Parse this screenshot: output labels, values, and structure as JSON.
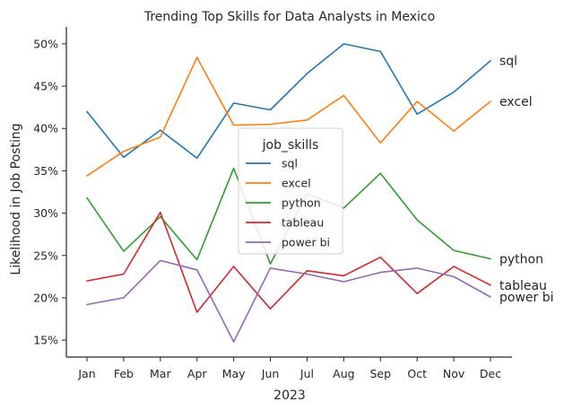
{
  "chart_data": {
    "type": "line",
    "title": "Trending Top Skills for Data Analysts in Mexico",
    "xlabel": "2023",
    "ylabel": "Likelihood in Job Posting",
    "categories": [
      "Jan",
      "Feb",
      "Mar",
      "Apr",
      "May",
      "Jun",
      "Jul",
      "Aug",
      "Sep",
      "Oct",
      "Nov",
      "Dec"
    ],
    "ylim": [
      13,
      52
    ],
    "yticks": [
      15,
      20,
      25,
      30,
      35,
      40,
      45,
      50
    ],
    "ytick_labels": [
      "15%",
      "20%",
      "25%",
      "30%",
      "35%",
      "40%",
      "45%",
      "50%"
    ],
    "legend": {
      "title": "job_skills",
      "placement": "center"
    },
    "grid": false,
    "series": [
      {
        "name": "sql",
        "color": "#1f77b4",
        "values": [
          42.0,
          36.6,
          39.8,
          36.5,
          43.0,
          42.2,
          46.5,
          50.0,
          49.1,
          41.7,
          44.3,
          48.0
        ]
      },
      {
        "name": "excel",
        "color": "#ff7f0e",
        "values": [
          34.4,
          37.3,
          39.0,
          48.4,
          40.4,
          40.5,
          41.0,
          43.9,
          38.3,
          43.2,
          39.7,
          43.2
        ]
      },
      {
        "name": "python",
        "color": "#2ca02c",
        "values": [
          31.8,
          25.5,
          29.6,
          24.5,
          35.3,
          24.0,
          32.3,
          30.6,
          34.7,
          29.2,
          25.6,
          24.6
        ]
      },
      {
        "name": "tableau",
        "color": "#d62728",
        "values": [
          22.0,
          22.8,
          30.1,
          18.3,
          23.7,
          18.7,
          23.2,
          22.6,
          24.8,
          20.5,
          23.7,
          21.5
        ]
      },
      {
        "name": "power bi",
        "color": "#9467bd",
        "values": [
          19.2,
          20.0,
          24.4,
          23.3,
          14.8,
          23.5,
          22.8,
          21.9,
          23.0,
          23.5,
          22.5,
          20.1
        ]
      }
    ]
  }
}
